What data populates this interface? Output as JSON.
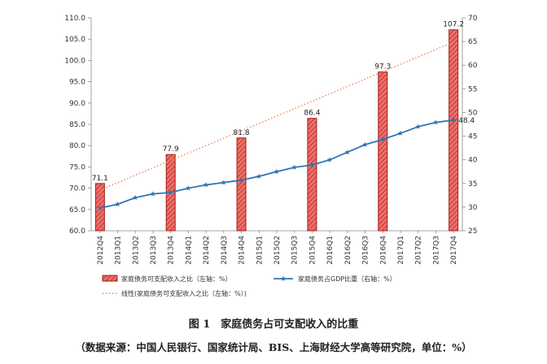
{
  "figure": {
    "title": "图 1　家庭债务占可支配收入的比重",
    "source": "（数据来源：中国人民银行、国家统计局、BIS、上海财经大学高等研究院，单位：%）"
  },
  "chart_data": {
    "type": "bar+line",
    "categories": [
      "2012Q4",
      "2013Q1",
      "2013Q2",
      "2013Q3",
      "2013Q4",
      "2014Q1",
      "2014Q2",
      "2014Q3",
      "2014Q4",
      "2015Q1",
      "2015Q2",
      "2015Q3",
      "2015Q4",
      "2016Q1",
      "2016Q2",
      "2016Q3",
      "2016Q4",
      "2017Q1",
      "2017Q2",
      "2017Q3",
      "2017Q4"
    ],
    "left_axis": {
      "min": 60,
      "max": 110,
      "ticks": [
        "60.0",
        "65.0",
        "70.0",
        "75.0",
        "80.0",
        "85.0",
        "90.0",
        "95.0",
        "100.0",
        "105.0",
        "110.0"
      ]
    },
    "right_axis": {
      "min": 25,
      "max": 70,
      "ticks": [
        "25",
        "30",
        "35",
        "40",
        "45",
        "50",
        "55",
        "60",
        "65",
        "70"
      ]
    },
    "series": [
      {
        "name": "家庭债务可支配收入之比（左轴：%）",
        "kind": "bar",
        "axis": "left",
        "color": "#d9534f",
        "points": [
          {
            "category": "2012Q4",
            "value": 71.1,
            "label": "71.1"
          },
          {
            "category": "2013Q4",
            "value": 77.9,
            "label": "77.9"
          },
          {
            "category": "2014Q4",
            "value": 81.8,
            "label": "81.8"
          },
          {
            "category": "2015Q4",
            "value": 86.4,
            "label": "86.4"
          },
          {
            "category": "2016Q4",
            "value": 97.3,
            "label": "97.3"
          },
          {
            "category": "2017Q4",
            "value": 107.2,
            "label": "107.2"
          }
        ]
      },
      {
        "name": "家庭债务占GDP比重（右轴：%）",
        "kind": "line",
        "axis": "right",
        "color": "#2e75b6",
        "values": [
          29.8,
          30.6,
          32.0,
          32.8,
          33.1,
          34.0,
          34.7,
          35.2,
          35.7,
          36.5,
          37.5,
          38.4,
          38.9,
          40.0,
          41.6,
          43.2,
          44.3,
          45.6,
          47.0,
          47.9,
          48.4
        ],
        "end_label": "48.4"
      },
      {
        "name": "线性(家庭债务可支配收入之比（左轴：%）)",
        "kind": "trendline",
        "axis": "left",
        "color": "#e8885a"
      }
    ],
    "legend_position": "bottom"
  }
}
